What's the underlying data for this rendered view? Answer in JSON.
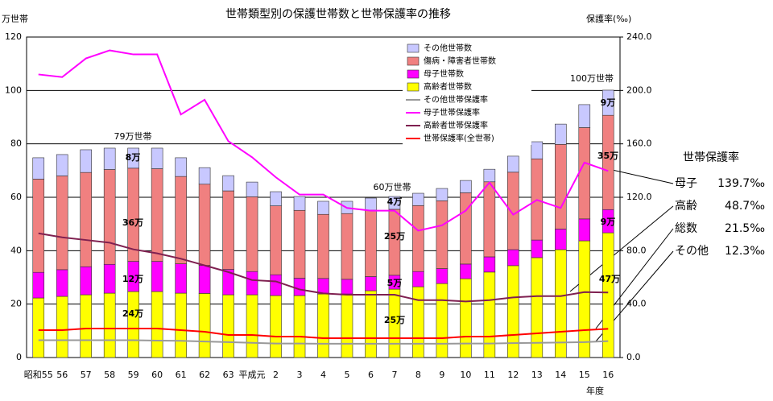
{
  "chart_data": {
    "type": "bar",
    "title": "世帯類型別の保護世帯数と世帯保護率の推移",
    "y_label": "万世帯",
    "y2_label": "保護率(‰)",
    "x_label": "年度",
    "categories": [
      "昭和55",
      "56",
      "57",
      "58",
      "59",
      "60",
      "61",
      "62",
      "63",
      "平成元",
      "2",
      "3",
      "4",
      "5",
      "6",
      "7",
      "8",
      "9",
      "10",
      "11",
      "12",
      "13",
      "14",
      "15",
      "16"
    ],
    "ylim": [
      0,
      120
    ],
    "yticks": [
      0,
      20,
      40,
      60,
      80,
      100,
      120
    ],
    "y2lim": [
      0,
      240
    ],
    "y2ticks": [
      {
        "value": 0,
        "label": "0.0"
      },
      {
        "value": 40,
        "label": "40.0"
      },
      {
        "value": 80,
        "label": "80.0"
      },
      {
        "value": 120,
        "label": "120.0"
      },
      {
        "value": 160,
        "label": "160.0"
      },
      {
        "value": 200,
        "label": "200.0"
      },
      {
        "value": 240,
        "label": "240.0"
      }
    ],
    "grid": true,
    "series": [
      {
        "name": "その他世帯数",
        "type": "bar",
        "color": "#c8c8ff",
        "values": [
          8,
          8,
          8.5,
          8,
          7.5,
          7.7,
          7,
          6.2,
          5.7,
          5.5,
          5.3,
          5.2,
          4.9,
          4.6,
          4.5,
          4.8,
          4.6,
          4.6,
          4.6,
          4.7,
          6,
          6.4,
          7.6,
          8.6,
          9.4
        ]
      },
      {
        "name": "傷病・障害者世帯数",
        "type": "bar",
        "color": "#f08080",
        "values": [
          34.9,
          35.1,
          35.3,
          35.5,
          34.9,
          34.7,
          32.7,
          30.4,
          29.4,
          28,
          25.8,
          25.4,
          24,
          24.6,
          24.9,
          24.7,
          24.7,
          25.4,
          26.7,
          28.1,
          29,
          30.4,
          31.7,
          34.2,
          35.3
        ]
      },
      {
        "name": "母子世帯数",
        "type": "bar",
        "color": "#ff00ff",
        "values": [
          9.6,
          10,
          10.5,
          10.8,
          11.3,
          11.3,
          11,
          10.5,
          9.5,
          8.7,
          7.8,
          6.5,
          5.8,
          5.5,
          5.3,
          5.2,
          5.7,
          5.6,
          5.5,
          5.7,
          6,
          6.6,
          7.7,
          8.2,
          8.7
        ]
      },
      {
        "name": "高齢者世帯数",
        "type": "bar",
        "color": "#ffff00",
        "values": [
          22.3,
          22.9,
          23.5,
          24.1,
          24.7,
          24.7,
          24.1,
          24,
          23.5,
          23.5,
          23.2,
          23.2,
          23.8,
          23.8,
          25,
          25.6,
          26.5,
          27.7,
          29.5,
          32,
          34.4,
          37.4,
          40.4,
          43.7,
          46.7
        ]
      },
      {
        "name": "その他世帯保護率",
        "type": "line",
        "axis": "y2",
        "color": "#999999",
        "values": [
          13,
          13,
          13,
          13,
          13,
          12.7,
          12.5,
          12,
          11.5,
          11,
          10.5,
          10.5,
          10.3,
          10.3,
          10.3,
          10.3,
          10.3,
          10.3,
          10.5,
          10.5,
          10.8,
          11,
          11.2,
          11.5,
          12.3
        ]
      },
      {
        "name": "母子世帯保護率",
        "type": "line",
        "axis": "y2",
        "color": "#ff00ff",
        "values": [
          212,
          210,
          224,
          230,
          227,
          227,
          182,
          193,
          162,
          150,
          135,
          122,
          122,
          112,
          110,
          110,
          95,
          99,
          110,
          131,
          107,
          118,
          112,
          146,
          139.7
        ]
      },
      {
        "name": "高齢者世帯保護率",
        "type": "line",
        "axis": "y2",
        "color": "#7f2050",
        "values": [
          93,
          90,
          88,
          86,
          81,
          78,
          74,
          69,
          64,
          58,
          57,
          51,
          48,
          47,
          47,
          47,
          43,
          43,
          42,
          43,
          45,
          46,
          46,
          49,
          48.7
        ]
      },
      {
        "name": "世帯保護率(全世帯)",
        "type": "line",
        "axis": "y2",
        "color": "#ff0000",
        "values": [
          20.5,
          20.5,
          21.7,
          21.7,
          21.7,
          21.7,
          20.5,
          19.3,
          16.9,
          16.9,
          15.7,
          15.7,
          14.5,
          14.5,
          14.5,
          14.5,
          14.5,
          14.5,
          15.7,
          15.7,
          16.9,
          18.1,
          19.3,
          20.5,
          21.5
        ]
      }
    ],
    "annotations": [
      "79万世帯",
      "8万",
      "36万",
      "12万",
      "24万",
      "60万世帯",
      "4万",
      "25万",
      "5万",
      "25万",
      "100万世帯",
      "9万",
      "35万",
      "9万",
      "47万"
    ],
    "rate_panel": {
      "title": "世帯保護率",
      "items": [
        {
          "label": "母子",
          "value": "139.7‰"
        },
        {
          "label": "高齢",
          "value": "48.7‰"
        },
        {
          "label": "総数",
          "value": "21.5‰"
        },
        {
          "label": "その他",
          "value": "12.3‰"
        }
      ]
    }
  }
}
